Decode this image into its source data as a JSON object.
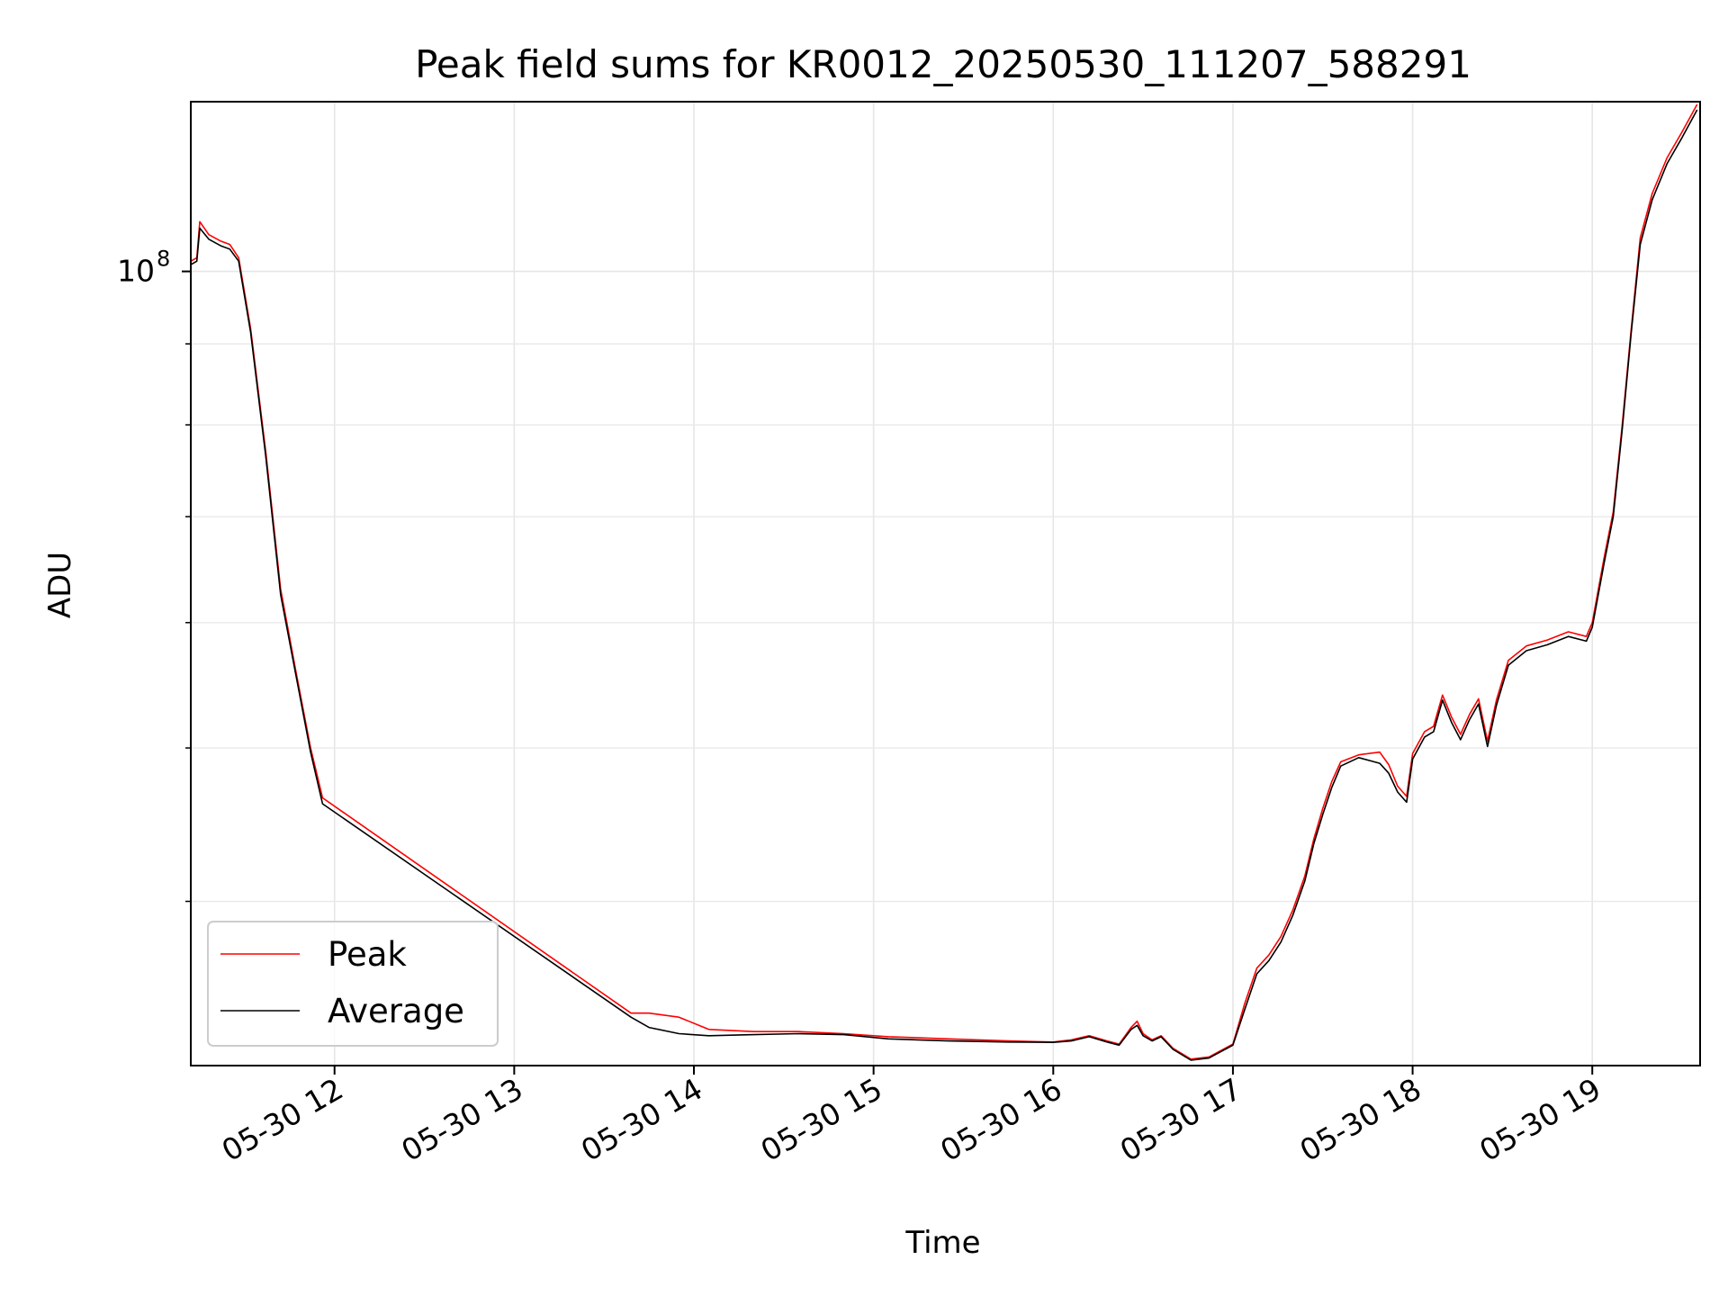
{
  "chart_data": {
    "type": "line",
    "title": "Peak field sums for KR0012_20250530_111207_588291",
    "xlabel": "Time",
    "ylabel": "ADU",
    "y_scale": "log",
    "x_range": [
      "2025-05-30 11:12",
      "2025-05-30 19:36"
    ],
    "ylim": [
      31500000,
      128000000
    ],
    "x_ticks": [
      {
        "value": "2025-05-30 12:00",
        "label": "05-30 12"
      },
      {
        "value": "2025-05-30 13:00",
        "label": "05-30 13"
      },
      {
        "value": "2025-05-30 14:00",
        "label": "05-30 14"
      },
      {
        "value": "2025-05-30 15:00",
        "label": "05-30 15"
      },
      {
        "value": "2025-05-30 16:00",
        "label": "05-30 16"
      },
      {
        "value": "2025-05-30 17:00",
        "label": "05-30 17"
      },
      {
        "value": "2025-05-30 18:00",
        "label": "05-30 18"
      },
      {
        "value": "2025-05-30 19:00",
        "label": "05-30 19"
      }
    ],
    "y_major_ticks": [
      {
        "value": 100000000,
        "label_base": "10",
        "label_exp": "8"
      }
    ],
    "y_minor_ticks": [
      40000000,
      50000000,
      60000000,
      70000000,
      80000000,
      90000000
    ],
    "grid": true,
    "legend_position": "lower-left",
    "series": [
      {
        "name": "Peak",
        "color": "#ff0000",
        "points": [
          [
            "2025-05-30 11:12",
            101500000
          ],
          [
            "2025-05-30 11:14",
            102000000
          ],
          [
            "2025-05-30 11:15",
            107500000
          ],
          [
            "2025-05-30 11:18",
            105500000
          ],
          [
            "2025-05-30 11:22",
            104500000
          ],
          [
            "2025-05-30 11:25",
            104000000
          ],
          [
            "2025-05-30 11:28",
            102000000
          ],
          [
            "2025-05-30 11:32",
            92000000
          ],
          [
            "2025-05-30 11:37",
            77000000
          ],
          [
            "2025-05-30 11:42",
            63000000
          ],
          [
            "2025-05-30 11:47",
            56000000
          ],
          [
            "2025-05-30 11:52",
            50000000
          ],
          [
            "2025-05-30 11:56",
            46500000
          ],
          [
            "2025-05-30 13:39",
            34000000
          ],
          [
            "2025-05-30 13:45",
            34000000
          ],
          [
            "2025-05-30 13:55",
            33800000
          ],
          [
            "2025-05-30 14:05",
            33200000
          ],
          [
            "2025-05-30 14:20",
            33100000
          ],
          [
            "2025-05-30 14:35",
            33100000
          ],
          [
            "2025-05-30 14:50",
            33000000
          ],
          [
            "2025-05-30 15:05",
            32850000
          ],
          [
            "2025-05-30 15:25",
            32750000
          ],
          [
            "2025-05-30 15:45",
            32650000
          ],
          [
            "2025-05-30 16:00",
            32600000
          ],
          [
            "2025-05-30 16:06",
            32700000
          ],
          [
            "2025-05-30 16:12",
            32900000
          ],
          [
            "2025-05-30 16:18",
            32650000
          ],
          [
            "2025-05-30 16:22",
            32500000
          ],
          [
            "2025-05-30 16:26",
            33300000
          ],
          [
            "2025-05-30 16:28",
            33600000
          ],
          [
            "2025-05-30 16:30",
            33000000
          ],
          [
            "2025-05-30 16:33",
            32700000
          ],
          [
            "2025-05-30 16:36",
            32900000
          ],
          [
            "2025-05-30 16:40",
            32300000
          ],
          [
            "2025-05-30 16:46",
            31800000
          ],
          [
            "2025-05-30 16:52",
            31900000
          ],
          [
            "2025-05-30 17:00",
            32500000
          ],
          [
            "2025-05-30 17:04",
            34500000
          ],
          [
            "2025-05-30 17:08",
            36300000
          ],
          [
            "2025-05-30 17:12",
            37000000
          ],
          [
            "2025-05-30 17:16",
            38000000
          ],
          [
            "2025-05-30 17:20",
            39500000
          ],
          [
            "2025-05-30 17:24",
            41500000
          ],
          [
            "2025-05-30 17:27",
            43800000
          ],
          [
            "2025-05-30 17:30",
            45800000
          ],
          [
            "2025-05-30 17:33",
            47600000
          ],
          [
            "2025-05-30 17:36",
            49000000
          ],
          [
            "2025-05-30 17:42",
            49500000
          ],
          [
            "2025-05-30 17:49",
            49700000
          ],
          [
            "2025-05-30 17:52",
            48800000
          ],
          [
            "2025-05-30 17:55",
            47300000
          ],
          [
            "2025-05-30 17:58",
            46600000
          ],
          [
            "2025-05-30 18:00",
            49600000
          ],
          [
            "2025-05-30 18:04",
            51200000
          ],
          [
            "2025-05-30 18:07",
            51600000
          ],
          [
            "2025-05-30 18:10",
            54000000
          ],
          [
            "2025-05-30 18:13",
            52300000
          ],
          [
            "2025-05-30 18:16",
            51000000
          ],
          [
            "2025-05-30 18:19",
            52500000
          ],
          [
            "2025-05-30 18:22",
            53700000
          ],
          [
            "2025-05-30 18:25",
            50500000
          ],
          [
            "2025-05-30 18:28",
            53600000
          ],
          [
            "2025-05-30 18:32",
            56800000
          ],
          [
            "2025-05-30 18:38",
            58000000
          ],
          [
            "2025-05-30 18:45",
            58500000
          ],
          [
            "2025-05-30 18:52",
            59200000
          ],
          [
            "2025-05-30 18:58",
            58800000
          ],
          [
            "2025-05-30 19:00",
            60000000
          ],
          [
            "2025-05-30 19:04",
            66000000
          ],
          [
            "2025-05-30 19:07",
            70500000
          ],
          [
            "2025-05-30 19:10",
            80000000
          ],
          [
            "2025-05-30 19:13",
            92000000
          ],
          [
            "2025-05-30 19:16",
            105000000
          ],
          [
            "2025-05-30 19:20",
            112000000
          ],
          [
            "2025-05-30 19:25",
            118000000
          ],
          [
            "2025-05-30 19:30",
            122500000
          ],
          [
            "2025-05-30 19:35",
            127500000
          ]
        ]
      },
      {
        "name": "Average",
        "color": "#000000",
        "points": [
          [
            "2025-05-30 11:12",
            101000000
          ],
          [
            "2025-05-30 11:14",
            101500000
          ],
          [
            "2025-05-30 11:15",
            106500000
          ],
          [
            "2025-05-30 11:18",
            104800000
          ],
          [
            "2025-05-30 11:22",
            103800000
          ],
          [
            "2025-05-30 11:25",
            103300000
          ],
          [
            "2025-05-30 11:28",
            101500000
          ],
          [
            "2025-05-30 11:32",
            91500000
          ],
          [
            "2025-05-30 11:37",
            76500000
          ],
          [
            "2025-05-30 11:42",
            62500000
          ],
          [
            "2025-05-30 11:47",
            55700000
          ],
          [
            "2025-05-30 11:52",
            49700000
          ],
          [
            "2025-05-30 11:56",
            46100000
          ],
          [
            "2025-05-30 13:39",
            33800000
          ],
          [
            "2025-05-30 13:45",
            33300000
          ],
          [
            "2025-05-30 13:55",
            33000000
          ],
          [
            "2025-05-30 14:05",
            32900000
          ],
          [
            "2025-05-30 14:20",
            32950000
          ],
          [
            "2025-05-30 14:35",
            33000000
          ],
          [
            "2025-05-30 14:50",
            32950000
          ],
          [
            "2025-05-30 15:05",
            32750000
          ],
          [
            "2025-05-30 15:25",
            32650000
          ],
          [
            "2025-05-30 15:45",
            32600000
          ],
          [
            "2025-05-30 16:00",
            32580000
          ],
          [
            "2025-05-30 16:06",
            32650000
          ],
          [
            "2025-05-30 16:12",
            32850000
          ],
          [
            "2025-05-30 16:18",
            32600000
          ],
          [
            "2025-05-30 16:22",
            32450000
          ],
          [
            "2025-05-30 16:26",
            33200000
          ],
          [
            "2025-05-30 16:28",
            33400000
          ],
          [
            "2025-05-30 16:30",
            32900000
          ],
          [
            "2025-05-30 16:33",
            32650000
          ],
          [
            "2025-05-30 16:36",
            32850000
          ],
          [
            "2025-05-30 16:40",
            32250000
          ],
          [
            "2025-05-30 16:46",
            31750000
          ],
          [
            "2025-05-30 16:52",
            31850000
          ],
          [
            "2025-05-30 17:00",
            32450000
          ],
          [
            "2025-05-30 17:04",
            34200000
          ],
          [
            "2025-05-30 17:08",
            36000000
          ],
          [
            "2025-05-30 17:12",
            36700000
          ],
          [
            "2025-05-30 17:16",
            37700000
          ],
          [
            "2025-05-30 17:20",
            39200000
          ],
          [
            "2025-05-30 17:24",
            41200000
          ],
          [
            "2025-05-30 17:27",
            43500000
          ],
          [
            "2025-05-30 17:30",
            45400000
          ],
          [
            "2025-05-30 17:33",
            47200000
          ],
          [
            "2025-05-30 17:36",
            48700000
          ],
          [
            "2025-05-30 17:42",
            49300000
          ],
          [
            "2025-05-30 17:49",
            48900000
          ],
          [
            "2025-05-30 17:52",
            48200000
          ],
          [
            "2025-05-30 17:55",
            46900000
          ],
          [
            "2025-05-30 17:58",
            46200000
          ],
          [
            "2025-05-30 18:00",
            49200000
          ],
          [
            "2025-05-30 18:04",
            50800000
          ],
          [
            "2025-05-30 18:07",
            51200000
          ],
          [
            "2025-05-30 18:10",
            53600000
          ],
          [
            "2025-05-30 18:13",
            51900000
          ],
          [
            "2025-05-30 18:16",
            50600000
          ],
          [
            "2025-05-30 18:19",
            52100000
          ],
          [
            "2025-05-30 18:22",
            53300000
          ],
          [
            "2025-05-30 18:25",
            50100000
          ],
          [
            "2025-05-30 18:28",
            53200000
          ],
          [
            "2025-05-30 18:32",
            56400000
          ],
          [
            "2025-05-30 18:38",
            57600000
          ],
          [
            "2025-05-30 18:45",
            58100000
          ],
          [
            "2025-05-30 18:52",
            58800000
          ],
          [
            "2025-05-30 18:58",
            58400000
          ],
          [
            "2025-05-30 19:00",
            59600000
          ],
          [
            "2025-05-30 19:04",
            65500000
          ],
          [
            "2025-05-30 19:07",
            70000000
          ],
          [
            "2025-05-30 19:10",
            79500000
          ],
          [
            "2025-05-30 19:13",
            91500000
          ],
          [
            "2025-05-30 19:16",
            104000000
          ],
          [
            "2025-05-30 19:20",
            111000000
          ],
          [
            "2025-05-30 19:25",
            117000000
          ],
          [
            "2025-05-30 19:30",
            121500000
          ],
          [
            "2025-05-30 19:35",
            126500000
          ]
        ]
      }
    ]
  }
}
